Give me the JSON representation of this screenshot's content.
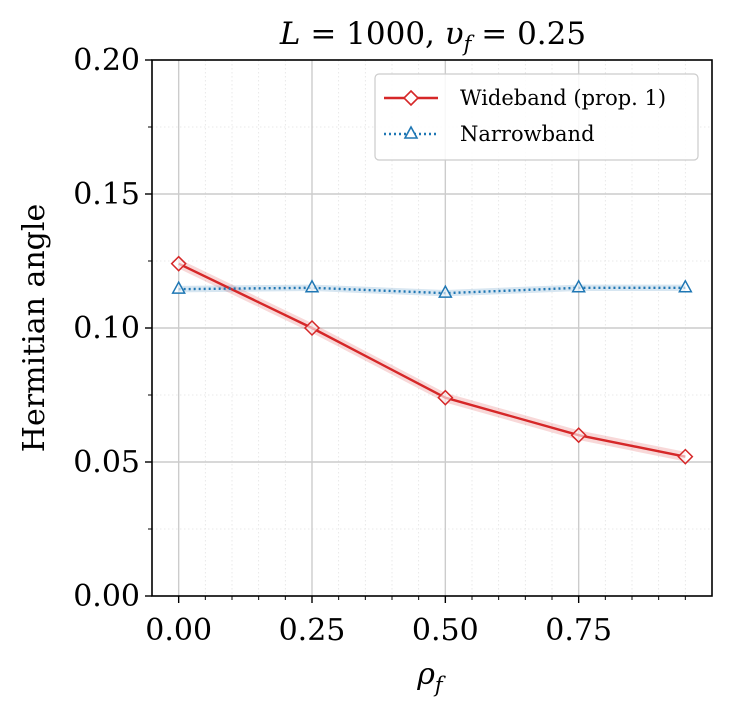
{
  "chart_data": {
    "type": "line",
    "title": "L = 1000, υ_f = 0.25",
    "title_parts": {
      "lhs1": "L",
      "eq1": " = 1000, ",
      "lhs2": "υ",
      "sub2": "f",
      "eq2": " = 0.25"
    },
    "xlabel": "ρ",
    "xlabel_sub": "f",
    "ylabel": "Hermitian angle",
    "xlim": [
      -0.05,
      1.0
    ],
    "ylim": [
      0.0,
      0.2
    ],
    "x_ticks": [
      0.0,
      0.25,
      0.5,
      0.75
    ],
    "x_tick_labels": [
      "0.00",
      "0.25",
      "0.50",
      "0.75"
    ],
    "y_ticks": [
      0.0,
      0.05,
      0.1,
      0.15,
      0.2
    ],
    "y_tick_labels": [
      "0.00",
      "0.05",
      "0.10",
      "0.15",
      "0.20"
    ],
    "grid": true,
    "legend_position": "top-right",
    "series": [
      {
        "name": "Wideband (prop. 1)",
        "color": "#d62728",
        "marker": "diamond",
        "line_style": "solid",
        "x": [
          0.0,
          0.25,
          0.5,
          0.75,
          0.95
        ],
        "y": [
          0.124,
          0.1,
          0.074,
          0.06,
          0.052
        ]
      },
      {
        "name": "Narrowband",
        "color": "#1f77b4",
        "marker": "triangle",
        "line_style": "dotted",
        "x": [
          0.0,
          0.25,
          0.5,
          0.75,
          0.95
        ],
        "y": [
          0.1145,
          0.115,
          0.113,
          0.115,
          0.115
        ]
      }
    ]
  }
}
